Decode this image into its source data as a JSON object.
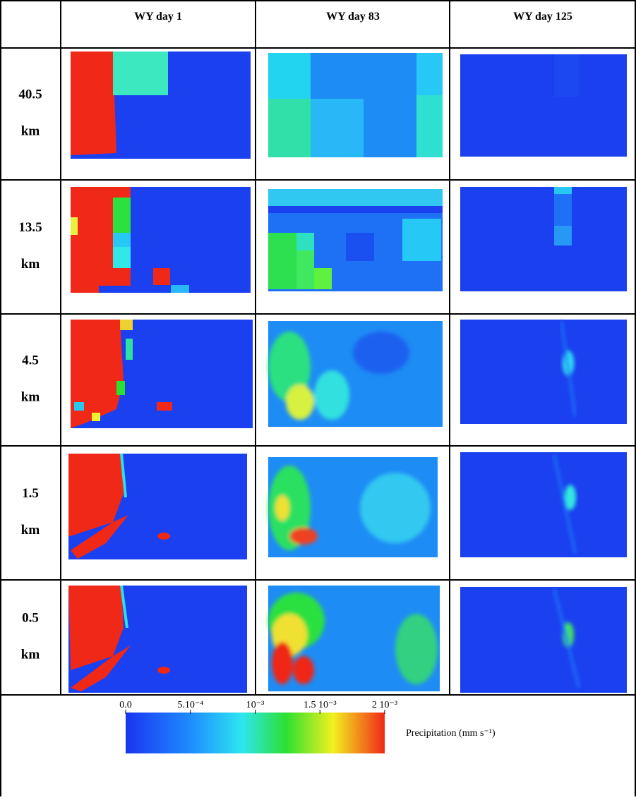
{
  "header": {
    "columns": [
      "WY day 1",
      "WY day 83",
      "WY day 125"
    ]
  },
  "rows": [
    {
      "value": "40.5",
      "unit": "km"
    },
    {
      "value": "13.5",
      "unit": "km"
    },
    {
      "value": "4.5",
      "unit": "km"
    },
    {
      "value": "1.5",
      "unit": "km"
    },
    {
      "value": "0.5",
      "unit": "km"
    }
  ],
  "colorbar": {
    "ticks": [
      "0.0",
      "5.10⁻⁴",
      "10⁻³",
      "1.5 10⁻³",
      "2 10⁻³"
    ],
    "label": "Precipitation (mm s⁻¹)"
  }
}
